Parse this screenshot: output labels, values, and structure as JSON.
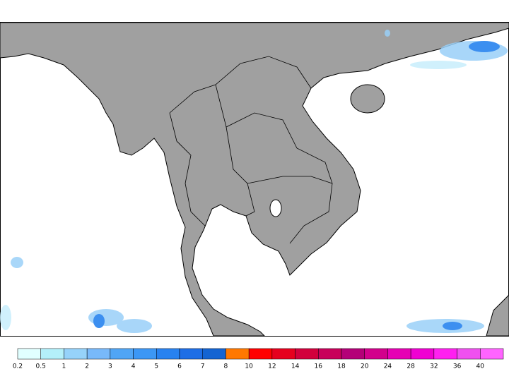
{
  "colorbar": {
    "ticks": [
      0.2,
      0.5,
      1,
      2,
      3,
      4,
      5,
      6,
      7,
      8,
      10,
      12,
      14,
      16,
      18,
      20,
      24,
      28,
      32,
      36,
      40
    ],
    "colors": [
      "#e1ffff",
      "#b4f0fa",
      "#96d2fa",
      "#78b9fa",
      "#50a5f5",
      "#3c97f5",
      "#2882f0",
      "#1e6ee6",
      "#1464d2",
      "#ff7800",
      "#ff0000",
      "#e6001e",
      "#d2003c",
      "#c8005a",
      "#b40078",
      "#d2008c",
      "#e600b4",
      "#f000d2",
      "#ff20f0",
      "#f050f0",
      "#ff64ff"
    ]
  }
}
